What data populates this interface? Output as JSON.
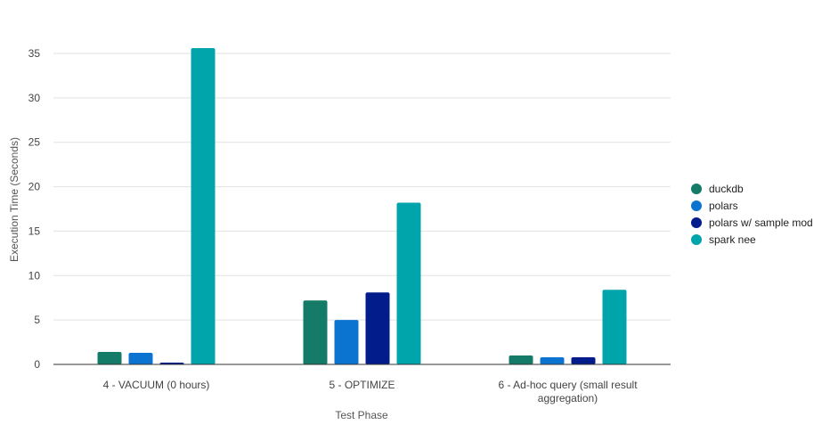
{
  "chart_data": {
    "type": "bar",
    "title": "",
    "xlabel": "Test Phase",
    "ylabel": "Execution Time (Seconds)",
    "ylim": [
      0,
      35
    ],
    "yticks": [
      0,
      5,
      10,
      15,
      20,
      25,
      30,
      35
    ],
    "grid": true,
    "legend_position": "right",
    "categories": [
      "4 - VACUUM (0 hours)",
      "5 - OPTIMIZE",
      "6 - Ad-hoc query (small result aggregation)"
    ],
    "category_label_lines": [
      [
        "4 - VACUUM (0 hours)"
      ],
      [
        "5 - OPTIMIZE"
      ],
      [
        "6 - Ad-hoc query (small result",
        "aggregation)"
      ]
    ],
    "series": [
      {
        "name": "duckdb",
        "color": "#137b68",
        "values": [
          1.4,
          7.2,
          1.0
        ]
      },
      {
        "name": "polars",
        "color": "#0b74d0",
        "values": [
          1.3,
          5.0,
          0.8
        ]
      },
      {
        "name": "polars w/ sample mod",
        "color": "#031c8c",
        "values": [
          0.2,
          8.1,
          0.8
        ]
      },
      {
        "name": "spark nee",
        "color": "#00a5ab",
        "values": [
          35.6,
          18.2,
          8.4
        ]
      }
    ]
  }
}
